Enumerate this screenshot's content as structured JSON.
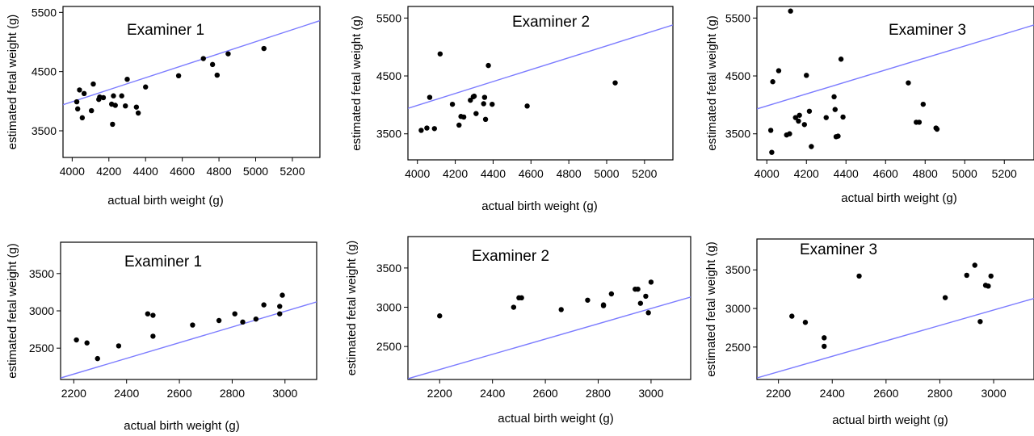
{
  "colors": {
    "point": "#000000",
    "line": "#7b7bff",
    "frame": "#000000"
  },
  "chart_data": [
    {
      "type": "scatter",
      "title": "Examiner 1",
      "xlabel": "actual birth weight (g)",
      "ylabel": "estimated fetal weight (g)",
      "xlim": [
        3950,
        5350
      ],
      "ylim": [
        3050,
        5600
      ],
      "xticks": [
        4000,
        4200,
        4400,
        4600,
        4800,
        5000,
        5200
      ],
      "yticks": [
        3500,
        4500,
        5500
      ],
      "line": [
        [
          3950,
          3940
        ],
        [
          5350,
          5360
        ]
      ],
      "points": [
        [
          4025,
          3990
        ],
        [
          4030,
          3870
        ],
        [
          4040,
          4190
        ],
        [
          4055,
          3720
        ],
        [
          4065,
          4130
        ],
        [
          4105,
          3840
        ],
        [
          4115,
          4290
        ],
        [
          4145,
          4030
        ],
        [
          4150,
          4070
        ],
        [
          4170,
          4060
        ],
        [
          4215,
          3950
        ],
        [
          4220,
          3610
        ],
        [
          4225,
          4090
        ],
        [
          4235,
          3930
        ],
        [
          4270,
          4090
        ],
        [
          4290,
          3920
        ],
        [
          4300,
          4370
        ],
        [
          4350,
          3900
        ],
        [
          4360,
          3800
        ],
        [
          4400,
          4240
        ],
        [
          4580,
          4430
        ],
        [
          4715,
          4720
        ],
        [
          4765,
          4620
        ],
        [
          4790,
          4440
        ],
        [
          4850,
          4800
        ],
        [
          5045,
          4890
        ]
      ]
    },
    {
      "type": "scatter",
      "title": "Examiner 2",
      "xlabel": "actual birth weight (g)",
      "ylabel": "estimated fetal weight (g)",
      "xlim": [
        3950,
        5350
      ],
      "ylim": [
        3050,
        5700
      ],
      "xticks": [
        4000,
        4200,
        4400,
        4600,
        4800,
        5000,
        5200
      ],
      "yticks": [
        3500,
        4500,
        5500
      ],
      "line": [
        [
          3950,
          3940
        ],
        [
          5350,
          5380
        ]
      ],
      "points": [
        [
          4020,
          3560
        ],
        [
          4050,
          3600
        ],
        [
          4065,
          4130
        ],
        [
          4090,
          3590
        ],
        [
          4120,
          4880
        ],
        [
          4185,
          4010
        ],
        [
          4220,
          3650
        ],
        [
          4230,
          3800
        ],
        [
          4245,
          3790
        ],
        [
          4280,
          4080
        ],
        [
          4295,
          4140
        ],
        [
          4300,
          4150
        ],
        [
          4310,
          3850
        ],
        [
          4350,
          4020
        ],
        [
          4355,
          4130
        ],
        [
          4360,
          3750
        ],
        [
          4375,
          4680
        ],
        [
          4395,
          4010
        ],
        [
          4580,
          3980
        ],
        [
          5045,
          4380
        ]
      ]
    },
    {
      "type": "scatter",
      "title": "Examiner 3",
      "xlabel": "actual birth weight (g)",
      "ylabel": "estimated fetal weight (g)",
      "xlim": [
        3950,
        5350
      ],
      "ylim": [
        3050,
        5700
      ],
      "xticks": [
        4000,
        4200,
        4400,
        4600,
        4800,
        5000,
        5200
      ],
      "yticks": [
        3500,
        4500,
        5500
      ],
      "line": [
        [
          3950,
          3930
        ],
        [
          5350,
          5380
        ]
      ],
      "points": [
        [
          4020,
          3560
        ],
        [
          4025,
          3180
        ],
        [
          4030,
          4400
        ],
        [
          4060,
          4590
        ],
        [
          4100,
          3480
        ],
        [
          4115,
          3500
        ],
        [
          4120,
          5620
        ],
        [
          4145,
          3780
        ],
        [
          4160,
          3720
        ],
        [
          4165,
          3820
        ],
        [
          4190,
          3660
        ],
        [
          4200,
          4510
        ],
        [
          4215,
          3890
        ],
        [
          4225,
          3280
        ],
        [
          4300,
          3780
        ],
        [
          4340,
          4140
        ],
        [
          4345,
          3920
        ],
        [
          4350,
          3450
        ],
        [
          4360,
          3460
        ],
        [
          4375,
          4790
        ],
        [
          4385,
          3790
        ],
        [
          4715,
          4380
        ],
        [
          4755,
          3700
        ],
        [
          4770,
          3700
        ],
        [
          4790,
          4010
        ],
        [
          4855,
          3600
        ],
        [
          4860,
          3580
        ]
      ]
    },
    {
      "type": "scatter",
      "title": "Examiner 1",
      "xlabel": "actual birth weight (g)",
      "ylabel": "estimated fetal weight (g)",
      "xlim": [
        2150,
        3120
      ],
      "ylim": [
        2080,
        3920
      ],
      "xticks": [
        2200,
        2400,
        2600,
        2800,
        3000
      ],
      "yticks": [
        2500,
        3000,
        3500
      ],
      "line": [
        [
          2150,
          2100
        ],
        [
          3120,
          3120
        ]
      ],
      "points": [
        [
          2210,
          2610
        ],
        [
          2250,
          2570
        ],
        [
          2290,
          2360
        ],
        [
          2370,
          2530
        ],
        [
          2480,
          2960
        ],
        [
          2500,
          2940
        ],
        [
          2500,
          2660
        ],
        [
          2650,
          2810
        ],
        [
          2750,
          2870
        ],
        [
          2810,
          2960
        ],
        [
          2840,
          2850
        ],
        [
          2890,
          2890
        ],
        [
          2920,
          3080
        ],
        [
          2980,
          2960
        ],
        [
          2980,
          3060
        ],
        [
          2990,
          3210
        ]
      ]
    },
    {
      "type": "scatter",
      "title": "Examiner 2",
      "xlabel": "actual birth weight (g)",
      "ylabel": "estimated fetal weight (g)",
      "xlim": [
        2080,
        3150
      ],
      "ylim": [
        2080,
        3900
      ],
      "xticks": [
        2200,
        2400,
        2600,
        2800,
        3000
      ],
      "yticks": [
        2500,
        3000,
        3500
      ],
      "line": [
        [
          2080,
          2090
        ],
        [
          3150,
          3130
        ]
      ],
      "points": [
        [
          2200,
          2890
        ],
        [
          2480,
          3000
        ],
        [
          2500,
          3120
        ],
        [
          2510,
          3120
        ],
        [
          2660,
          2970
        ],
        [
          2760,
          3090
        ],
        [
          2820,
          3030
        ],
        [
          2820,
          3020
        ],
        [
          2850,
          3170
        ],
        [
          2940,
          3230
        ],
        [
          2950,
          3230
        ],
        [
          2960,
          3050
        ],
        [
          2980,
          3140
        ],
        [
          2990,
          2930
        ],
        [
          3000,
          3320
        ]
      ]
    },
    {
      "type": "scatter",
      "title": "Examiner 3",
      "xlabel": "actual birth weight (g)",
      "ylabel": "estimated fetal weight (g)",
      "xlim": [
        2120,
        3150
      ],
      "ylim": [
        2080,
        3900
      ],
      "xticks": [
        2200,
        2400,
        2600,
        2800,
        3000
      ],
      "yticks": [
        2500,
        3000,
        3500
      ],
      "line": [
        [
          2120,
          2100
        ],
        [
          3150,
          3130
        ]
      ],
      "points": [
        [
          2250,
          2900
        ],
        [
          2300,
          2820
        ],
        [
          2370,
          2620
        ],
        [
          2370,
          2510
        ],
        [
          2500,
          3420
        ],
        [
          2820,
          3140
        ],
        [
          2900,
          3430
        ],
        [
          2930,
          3560
        ],
        [
          2950,
          2830
        ],
        [
          2970,
          3300
        ],
        [
          2980,
          3290
        ],
        [
          2990,
          3420
        ]
      ]
    }
  ]
}
